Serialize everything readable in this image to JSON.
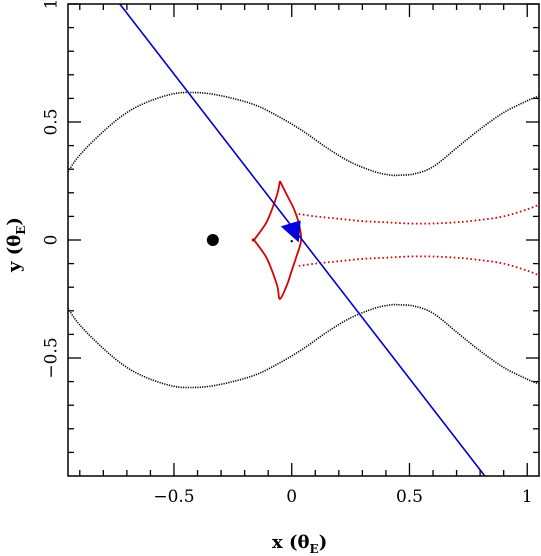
{
  "chart_data": {
    "type": "line",
    "title": "",
    "xlabel": "x",
    "xlabel_unit_symbol": "θ",
    "xlabel_unit_subscript": "E",
    "ylabel": "y",
    "ylabel_unit_symbol": "θ",
    "ylabel_unit_subscript": "E",
    "xlim": [
      -0.95,
      1.05
    ],
    "ylim": [
      -1.0,
      1.0
    ],
    "xticks": [
      {
        "value": -0.5,
        "label": "−0.5"
      },
      {
        "value": 0,
        "label": "0"
      },
      {
        "value": 0.5,
        "label": "0.5"
      },
      {
        "value": 1,
        "label": "1"
      }
    ],
    "yticks": [
      {
        "value": -0.5,
        "label": "−0.5"
      },
      {
        "value": 0,
        "label": "0"
      },
      {
        "value": 0.5,
        "label": "0.5"
      },
      {
        "value": 1,
        "label": "1"
      }
    ],
    "grid": false,
    "colors": {
      "critical_curve": "#000000",
      "caustic": "#dd0000",
      "trajectory": "#0000cc",
      "lens": "#000000",
      "source": "#0000dd"
    },
    "series": [
      {
        "role": "critical-curve-upper",
        "x": [
          -0.95,
          -0.9,
          -0.8,
          -0.7,
          -0.6,
          -0.5,
          -0.43,
          -0.35,
          -0.25,
          -0.15,
          -0.05,
          0.05,
          0.15,
          0.25,
          0.35,
          0.42,
          0.46,
          0.52,
          0.6,
          0.7,
          0.8,
          0.9,
          1.0,
          1.05
        ],
        "y": [
          0.29,
          0.36,
          0.46,
          0.54,
          0.59,
          0.62,
          0.625,
          0.62,
          0.6,
          0.57,
          0.52,
          0.46,
          0.39,
          0.33,
          0.29,
          0.275,
          0.275,
          0.28,
          0.31,
          0.39,
          0.47,
          0.54,
          0.59,
          0.61
        ]
      },
      {
        "role": "critical-curve-lower",
        "x": [
          -0.95,
          -0.9,
          -0.8,
          -0.7,
          -0.6,
          -0.5,
          -0.43,
          -0.35,
          -0.25,
          -0.15,
          -0.05,
          0.05,
          0.15,
          0.25,
          0.35,
          0.42,
          0.46,
          0.52,
          0.6,
          0.7,
          0.8,
          0.9,
          1.0,
          1.05
        ],
        "y": [
          -0.29,
          -0.36,
          -0.46,
          -0.54,
          -0.59,
          -0.62,
          -0.625,
          -0.62,
          -0.6,
          -0.57,
          -0.52,
          -0.46,
          -0.39,
          -0.33,
          -0.29,
          -0.275,
          -0.275,
          -0.28,
          -0.31,
          -0.39,
          -0.47,
          -0.54,
          -0.59,
          -0.61
        ]
      },
      {
        "role": "caustic-central",
        "x": [
          -0.05,
          -0.06,
          -0.08,
          -0.11,
          -0.16,
          -0.16,
          -0.11,
          -0.08,
          -0.06,
          -0.05,
          -0.02,
          0.0,
          0.02,
          0.04,
          0.03,
          0.01,
          -0.02,
          -0.05
        ],
        "y": [
          0.25,
          0.2,
          0.14,
          0.07,
          0.0,
          0.0,
          -0.07,
          -0.14,
          -0.2,
          -0.25,
          -0.19,
          -0.13,
          -0.07,
          0.0,
          0.07,
          0.13,
          0.19,
          0.25
        ]
      },
      {
        "role": "caustic-upper-branch",
        "x": [
          0.03,
          0.1,
          0.2,
          0.3,
          0.4,
          0.5,
          0.6,
          0.7,
          0.8,
          0.9,
          1.0,
          1.05
        ],
        "y": [
          0.11,
          0.1,
          0.09,
          0.08,
          0.075,
          0.07,
          0.07,
          0.075,
          0.085,
          0.1,
          0.13,
          0.15
        ]
      },
      {
        "role": "caustic-lower-branch",
        "x": [
          0.03,
          0.1,
          0.2,
          0.3,
          0.4,
          0.5,
          0.6,
          0.7,
          0.8,
          0.9,
          1.0,
          1.05
        ],
        "y": [
          -0.11,
          -0.1,
          -0.09,
          -0.08,
          -0.075,
          -0.07,
          -0.07,
          -0.075,
          -0.085,
          -0.1,
          -0.13,
          -0.15
        ]
      },
      {
        "role": "source-trajectory",
        "x": [
          -0.73,
          0.82
        ],
        "y": [
          1.0,
          -1.0
        ]
      }
    ],
    "points": [
      {
        "role": "lens-mass",
        "x": -0.335,
        "y": 0.0
      },
      {
        "role": "source-position-arrow",
        "x": 0.0,
        "y": 0.045
      },
      {
        "role": "source-dot",
        "x": 0.0,
        "y": -0.005
      }
    ]
  }
}
